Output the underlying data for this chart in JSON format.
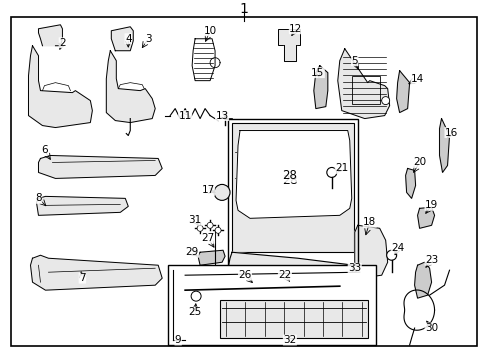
{
  "bg_color": "#ffffff",
  "border_color": "#000000",
  "title": "1",
  "fig_width": 4.89,
  "fig_height": 3.6,
  "dpi": 100
}
